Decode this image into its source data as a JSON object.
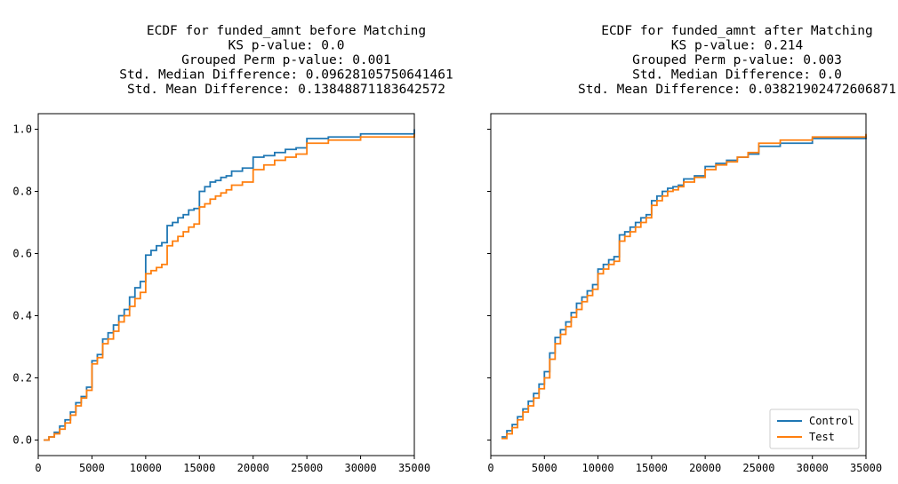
{
  "chart_data": [
    {
      "type": "line",
      "step": true,
      "title_lines": [
        "ECDF for funded_amnt before Matching",
        "KS p-value: 0.0",
        "Grouped Perm p-value: 0.001",
        "Std. Median Difference: 0.09628105750641461",
        "Std. Mean Difference: 0.13848871183642572"
      ],
      "xlabel": "",
      "ylabel": "",
      "xlim": [
        0,
        35000
      ],
      "ylim": [
        -0.05,
        1.05
      ],
      "xticks": [
        0,
        5000,
        10000,
        15000,
        20000,
        25000,
        30000,
        35000
      ],
      "xtick_labels": [
        "0",
        "5000",
        "10000",
        "15000",
        "20000",
        "25000",
        "30000",
        "35000"
      ],
      "yticks": [
        0.0,
        0.2,
        0.4,
        0.6,
        0.8,
        1.0
      ],
      "ytick_labels": [
        "0.0",
        "0.2",
        "0.4",
        "0.6",
        "0.8",
        "1.0"
      ],
      "show_yticklabels": true,
      "grid": false,
      "legend": null,
      "series": [
        {
          "color": "#1f77b4",
          "x": [
            500,
            1000,
            1500,
            2000,
            2500,
            3000,
            3500,
            4000,
            4500,
            5000,
            5500,
            6000,
            6500,
            7000,
            7500,
            8000,
            8500,
            9000,
            9500,
            10000,
            10500,
            11000,
            11500,
            12000,
            12500,
            13000,
            13500,
            14000,
            14500,
            15000,
            15500,
            16000,
            16500,
            17000,
            17500,
            18000,
            19000,
            20000,
            21000,
            22000,
            23000,
            24000,
            25000,
            27000,
            30000,
            35000
          ],
          "y": [
            0.0,
            0.01,
            0.025,
            0.045,
            0.065,
            0.09,
            0.12,
            0.14,
            0.17,
            0.255,
            0.275,
            0.325,
            0.345,
            0.37,
            0.4,
            0.42,
            0.46,
            0.49,
            0.51,
            0.595,
            0.61,
            0.625,
            0.635,
            0.69,
            0.7,
            0.715,
            0.725,
            0.74,
            0.745,
            0.8,
            0.815,
            0.83,
            0.835,
            0.845,
            0.85,
            0.865,
            0.875,
            0.91,
            0.915,
            0.925,
            0.935,
            0.94,
            0.97,
            0.975,
            0.985,
            1.0
          ]
        },
        {
          "color": "#ff7f0e",
          "x": [
            500,
            1000,
            1500,
            2000,
            2500,
            3000,
            3500,
            4000,
            4500,
            5000,
            5500,
            6000,
            6500,
            7000,
            7500,
            8000,
            8500,
            9000,
            9500,
            10000,
            10500,
            11000,
            11500,
            12000,
            12500,
            13000,
            13500,
            14000,
            14500,
            15000,
            15500,
            16000,
            16500,
            17000,
            17500,
            18000,
            19000,
            20000,
            21000,
            22000,
            23000,
            24000,
            25000,
            27000,
            30000,
            35000
          ],
          "y": [
            0.0,
            0.01,
            0.02,
            0.035,
            0.055,
            0.08,
            0.11,
            0.135,
            0.16,
            0.245,
            0.265,
            0.31,
            0.325,
            0.35,
            0.38,
            0.4,
            0.43,
            0.455,
            0.475,
            0.535,
            0.545,
            0.555,
            0.565,
            0.625,
            0.64,
            0.655,
            0.67,
            0.685,
            0.695,
            0.75,
            0.76,
            0.775,
            0.785,
            0.795,
            0.805,
            0.82,
            0.83,
            0.87,
            0.885,
            0.9,
            0.91,
            0.92,
            0.955,
            0.965,
            0.975,
            0.985
          ]
        }
      ]
    },
    {
      "type": "line",
      "step": true,
      "title_lines": [
        "ECDF for funded_amnt after Matching",
        "KS p-value: 0.214",
        "Grouped Perm p-value: 0.003",
        "Std. Median Difference: 0.0",
        "Std. Mean Difference: 0.03821902472606871"
      ],
      "xlabel": "",
      "ylabel": "",
      "xlim": [
        0,
        35000
      ],
      "ylim": [
        -0.05,
        1.05
      ],
      "xticks": [
        0,
        5000,
        10000,
        15000,
        20000,
        25000,
        30000,
        35000
      ],
      "xtick_labels": [
        "0",
        "5000",
        "10000",
        "15000",
        "20000",
        "25000",
        "30000",
        "35000"
      ],
      "yticks": [
        0.0,
        0.2,
        0.4,
        0.6,
        0.8,
        1.0
      ],
      "ytick_labels": [
        "0.0",
        "0.2",
        "0.4",
        "0.6",
        "0.8",
        "1.0"
      ],
      "show_yticklabels": false,
      "grid": false,
      "legend": {
        "location": "lower-right",
        "entries": [
          {
            "label": "Control",
            "color": "#1f77b4"
          },
          {
            "label": "Test",
            "color": "#ff7f0e"
          }
        ]
      },
      "series": [
        {
          "name": "Control",
          "color": "#1f77b4",
          "x": [
            1000,
            1500,
            2000,
            2500,
            3000,
            3500,
            4000,
            4500,
            5000,
            5500,
            6000,
            6500,
            7000,
            7500,
            8000,
            8500,
            9000,
            9500,
            10000,
            10500,
            11000,
            11500,
            12000,
            12500,
            13000,
            13500,
            14000,
            14500,
            15000,
            15500,
            16000,
            16500,
            17000,
            17500,
            18000,
            19000,
            20000,
            21000,
            22000,
            23000,
            24000,
            25000,
            27000,
            30000,
            35000
          ],
          "y": [
            0.01,
            0.03,
            0.05,
            0.075,
            0.1,
            0.125,
            0.15,
            0.18,
            0.22,
            0.28,
            0.33,
            0.355,
            0.38,
            0.41,
            0.44,
            0.46,
            0.48,
            0.5,
            0.55,
            0.565,
            0.58,
            0.59,
            0.66,
            0.67,
            0.685,
            0.7,
            0.715,
            0.725,
            0.77,
            0.785,
            0.8,
            0.81,
            0.815,
            0.82,
            0.84,
            0.85,
            0.88,
            0.89,
            0.9,
            0.91,
            0.92,
            0.945,
            0.955,
            0.97,
            0.98
          ]
        },
        {
          "name": "Test",
          "color": "#ff7f0e",
          "x": [
            1000,
            1500,
            2000,
            2500,
            3000,
            3500,
            4000,
            4500,
            5000,
            5500,
            6000,
            6500,
            7000,
            7500,
            8000,
            8500,
            9000,
            9500,
            10000,
            10500,
            11000,
            11500,
            12000,
            12500,
            13000,
            13500,
            14000,
            14500,
            15000,
            15500,
            16000,
            16500,
            17000,
            17500,
            18000,
            19000,
            20000,
            21000,
            22000,
            23000,
            24000,
            25000,
            27000,
            30000,
            35000
          ],
          "y": [
            0.005,
            0.02,
            0.04,
            0.065,
            0.09,
            0.11,
            0.135,
            0.165,
            0.2,
            0.26,
            0.31,
            0.34,
            0.365,
            0.395,
            0.42,
            0.445,
            0.465,
            0.485,
            0.535,
            0.55,
            0.565,
            0.575,
            0.64,
            0.655,
            0.67,
            0.685,
            0.7,
            0.715,
            0.755,
            0.77,
            0.785,
            0.8,
            0.805,
            0.815,
            0.83,
            0.845,
            0.87,
            0.885,
            0.895,
            0.91,
            0.925,
            0.955,
            0.965,
            0.975,
            0.985
          ]
        }
      ]
    }
  ]
}
